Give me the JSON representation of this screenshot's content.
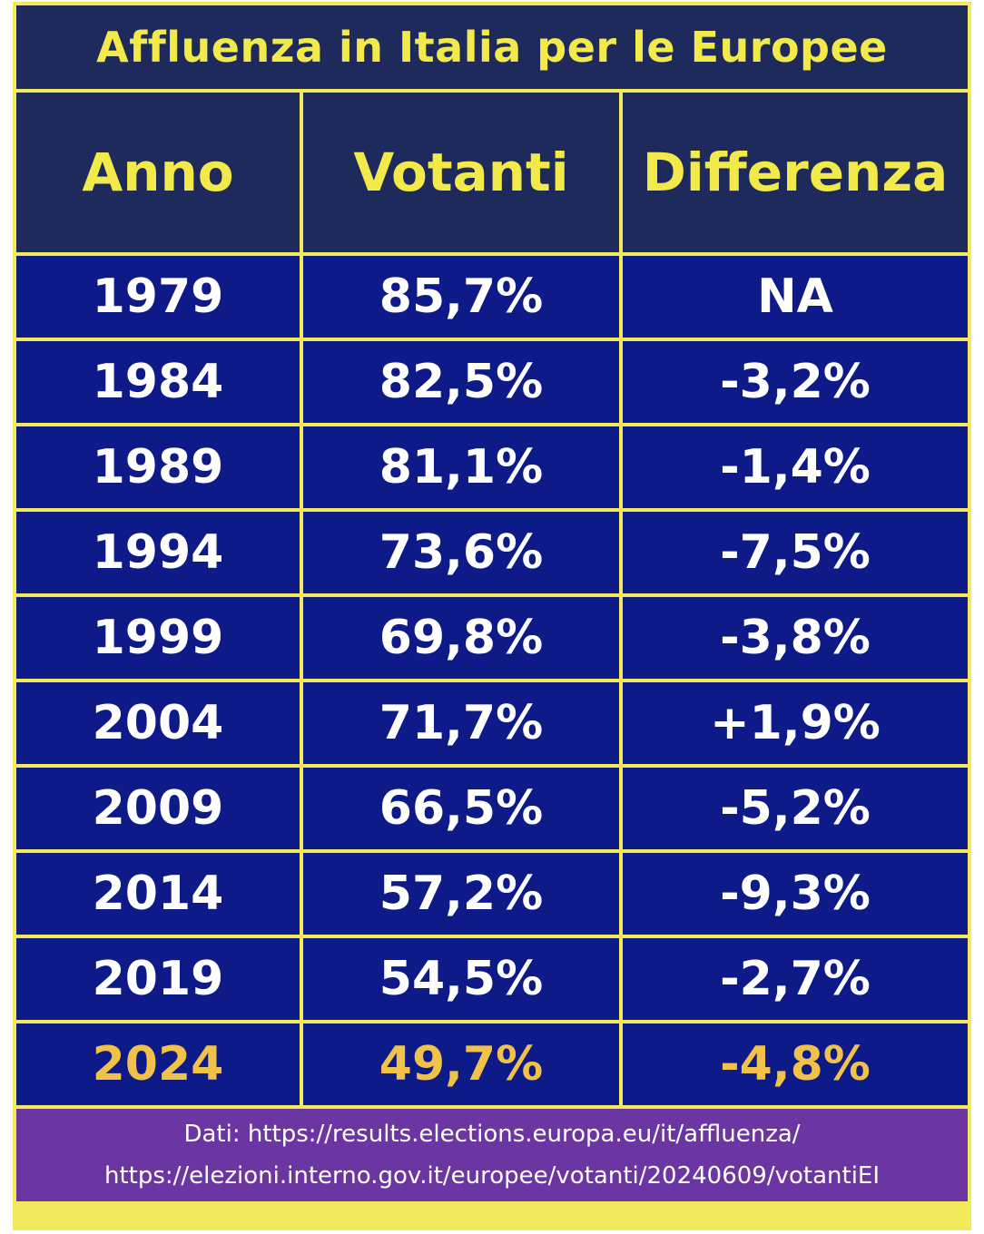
{
  "title": "Affluenza in Italia per le Europee",
  "headers": [
    "Anno",
    "Votanti",
    "Differenza"
  ],
  "rows": [
    {
      "anno": "1979",
      "votanti": "85,7%",
      "differenza": "NA"
    },
    {
      "anno": "1984",
      "votanti": "82,5%",
      "differenza": "-3,2%"
    },
    {
      "anno": "1989",
      "votanti": "81,1%",
      "differenza": "-1,4%"
    },
    {
      "anno": "1994",
      "votanti": "73,6%",
      "differenza": "-7,5%"
    },
    {
      "anno": "1999",
      "votanti": "69,8%",
      "differenza": "-3,8%"
    },
    {
      "anno": "2004",
      "votanti": "71,7%",
      "differenza": "+1,9%"
    },
    {
      "anno": "2009",
      "votanti": "66,5%",
      "differenza": "-5,2%"
    },
    {
      "anno": "2014",
      "votanti": "57,2%",
      "differenza": "-9,3%"
    },
    {
      "anno": "2019",
      "votanti": "54,5%",
      "differenza": "-2,7%"
    },
    {
      "anno": "2024",
      "votanti": "49,7%",
      "differenza": "-4,8%"
    }
  ],
  "footer": {
    "line1": "Dati: https://results.elections.europa.eu/it/affluenza/",
    "line2": "https://elezioni.interno.gov.it/europee/votanti/20240609/votantiEI"
  },
  "colors": {
    "border": "#f2ea5c",
    "header_bg": "#1f2a5c",
    "header_text": "#f2ea4a",
    "row_bg": "#0d1a87",
    "row_text": "#ffffff",
    "highlight_text": "#f0c24a",
    "footer_bg": "#6b36a2"
  }
}
